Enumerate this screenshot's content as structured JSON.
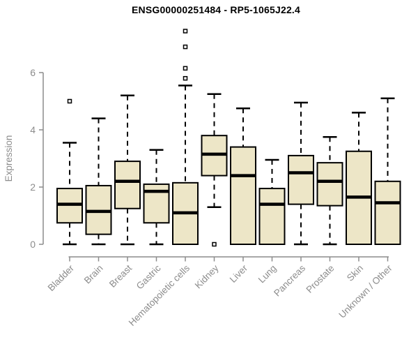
{
  "chart_data": {
    "type": "boxplot",
    "title": "ENSG00000251484 - RP5-1065J22.4",
    "ylabel": "Expression",
    "xlabel": "",
    "ylim": [
      0,
      6
    ],
    "yticks": [
      0,
      2,
      4,
      6
    ],
    "grid": false,
    "legend": false,
    "categories": [
      "Bladder",
      "Brain",
      "Breast",
      "Gastric",
      "Hematopoietic cells",
      "Kidney",
      "Liver",
      "Lung",
      "Pancreas",
      "Prostate",
      "Skin",
      "Unknown / Other"
    ],
    "boxes": [
      {
        "category": "Bladder",
        "min": 0,
        "q1": 0.75,
        "median": 1.4,
        "q3": 1.95,
        "max": 3.55,
        "outliers": [
          5.0
        ]
      },
      {
        "category": "Brain",
        "min": 0,
        "q1": 0.35,
        "median": 1.15,
        "q3": 2.05,
        "max": 4.4,
        "outliers": []
      },
      {
        "category": "Breast",
        "min": 0,
        "q1": 1.25,
        "median": 2.2,
        "q3": 2.9,
        "max": 5.2,
        "outliers": []
      },
      {
        "category": "Gastric",
        "min": 0,
        "q1": 0.75,
        "median": 1.85,
        "q3": 2.1,
        "max": 3.3,
        "outliers": []
      },
      {
        "category": "Hematopoietic cells",
        "min": 0,
        "q1": 0,
        "median": 1.1,
        "q3": 2.15,
        "max": 5.55,
        "outliers": [
          5.8,
          6.15,
          6.9,
          7.45
        ]
      },
      {
        "category": "Kidney",
        "min": 1.3,
        "q1": 2.4,
        "median": 3.15,
        "q3": 3.8,
        "max": 5.25,
        "outliers": [
          0
        ]
      },
      {
        "category": "Liver",
        "min": 0,
        "q1": 0,
        "median": 2.4,
        "q3": 3.4,
        "max": 4.75,
        "outliers": []
      },
      {
        "category": "Lung",
        "min": 0,
        "q1": 0,
        "median": 1.4,
        "q3": 1.95,
        "max": 2.95,
        "outliers": []
      },
      {
        "category": "Pancreas",
        "min": 0,
        "q1": 1.4,
        "median": 2.5,
        "q3": 3.1,
        "max": 4.95,
        "outliers": []
      },
      {
        "category": "Prostate",
        "min": 0,
        "q1": 1.35,
        "median": 2.2,
        "q3": 2.85,
        "max": 3.75,
        "outliers": []
      },
      {
        "category": "Skin",
        "min": 0,
        "q1": 0,
        "median": 1.65,
        "q3": 3.25,
        "max": 4.6,
        "outliers": []
      },
      {
        "category": "Unknown / Other",
        "min": 0,
        "q1": 0,
        "median": 1.45,
        "q3": 2.2,
        "max": 5.1,
        "outliers": []
      }
    ],
    "colors": {
      "box_fill": "#EDE6C7",
      "box_stroke": "#000000",
      "median": "#000000",
      "whisker": "#000000",
      "outlier": "#000000",
      "axis": "#8C8C8C",
      "tick_text": "#8C8C8C",
      "title_text": "#000000",
      "background": "#FFFFFF"
    }
  }
}
